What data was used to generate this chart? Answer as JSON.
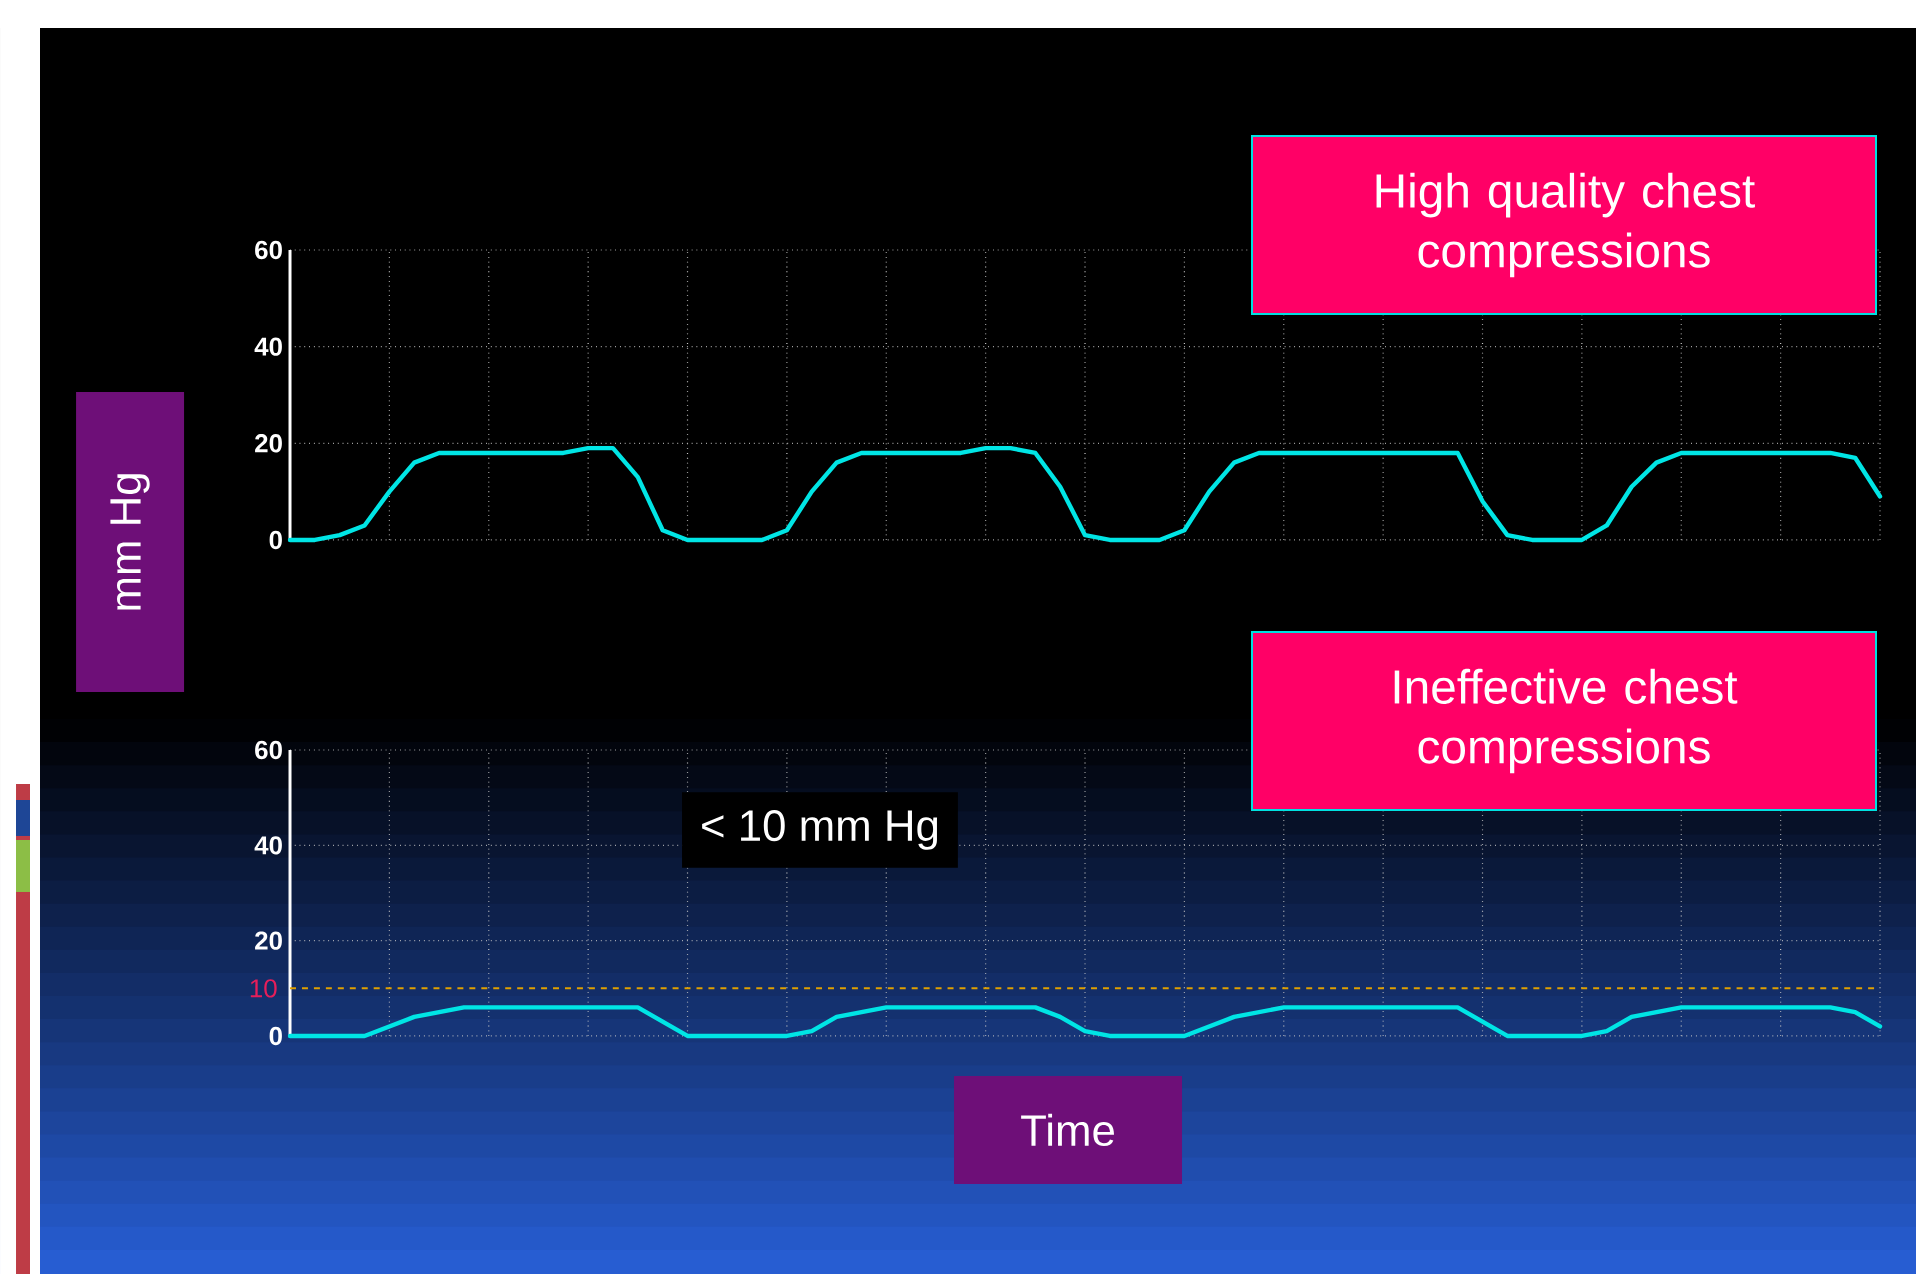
{
  "chart_data": [
    {
      "type": "line",
      "title": "High quality chest compressions",
      "ylabel": "mm Hg",
      "categories": [
        null,
        null,
        null,
        null,
        null,
        null,
        null,
        null,
        null,
        null,
        null,
        null,
        null,
        null,
        null,
        null,
        null,
        null,
        null,
        null,
        null,
        null,
        null,
        null,
        null,
        null,
        null,
        null,
        null,
        null,
        null,
        null,
        null,
        null,
        null,
        null,
        null,
        null,
        null,
        null,
        null,
        null,
        null,
        null,
        null,
        null,
        null,
        null,
        null,
        null,
        null,
        null,
        null,
        null,
        null,
        null,
        null,
        null,
        null,
        null,
        null,
        null,
        null,
        null,
        null
      ],
      "series": [
        {
          "color": "#00e5e5",
          "values": [
            0,
            0,
            1,
            3,
            10,
            16,
            18,
            18,
            18,
            18,
            18,
            18,
            19,
            19,
            13,
            2,
            0,
            0,
            0,
            0,
            2,
            10,
            16,
            18,
            18,
            18,
            18,
            18,
            19,
            19,
            18,
            11,
            1,
            0,
            0,
            0,
            2,
            10,
            16,
            18,
            18,
            18,
            18,
            18,
            18,
            18,
            18,
            18,
            8,
            1,
            0,
            0,
            0,
            3,
            11,
            16,
            18,
            18,
            18,
            18,
            18,
            18,
            18,
            17,
            9
          ]
        }
      ],
      "ylim": [
        0,
        60
      ],
      "yticks": [
        0,
        20,
        40,
        60
      ],
      "grid": true
    },
    {
      "type": "line",
      "title": "Ineffective chest compressions",
      "xlabel": "Time",
      "categories": [
        null,
        null,
        null,
        null,
        null,
        null,
        null,
        null,
        null,
        null,
        null,
        null,
        null,
        null,
        null,
        null,
        null,
        null,
        null,
        null,
        null,
        null,
        null,
        null,
        null,
        null,
        null,
        null,
        null,
        null,
        null,
        null,
        null,
        null,
        null,
        null,
        null,
        null,
        null,
        null,
        null,
        null,
        null,
        null,
        null,
        null,
        null,
        null,
        null,
        null,
        null,
        null,
        null,
        null,
        null,
        null,
        null,
        null,
        null,
        null,
        null,
        null,
        null,
        null,
        null
      ],
      "series": [
        {
          "color": "#00e5e5",
          "values": [
            0,
            0,
            0,
            0,
            2,
            4,
            5,
            6,
            6,
            6,
            6,
            6,
            6,
            6,
            6,
            3,
            0,
            0,
            0,
            0,
            0,
            1,
            4,
            5,
            6,
            6,
            6,
            6,
            6,
            6,
            6,
            4,
            1,
            0,
            0,
            0,
            0,
            2,
            4,
            5,
            6,
            6,
            6,
            6,
            6,
            6,
            6,
            6,
            3,
            0,
            0,
            0,
            0,
            1,
            4,
            5,
            6,
            6,
            6,
            6,
            6,
            6,
            6,
            5,
            2
          ]
        }
      ],
      "ylim": [
        0,
        60
      ],
      "yticks": [
        0,
        20,
        40,
        60
      ],
      "grid": true,
      "ref_lines": [
        {
          "axis": "y",
          "value": 10,
          "label": "10",
          "color": "#e0a000",
          "line_style": "dashed"
        }
      ],
      "annotations": [
        "< 10 mm Hg"
      ]
    }
  ]
}
